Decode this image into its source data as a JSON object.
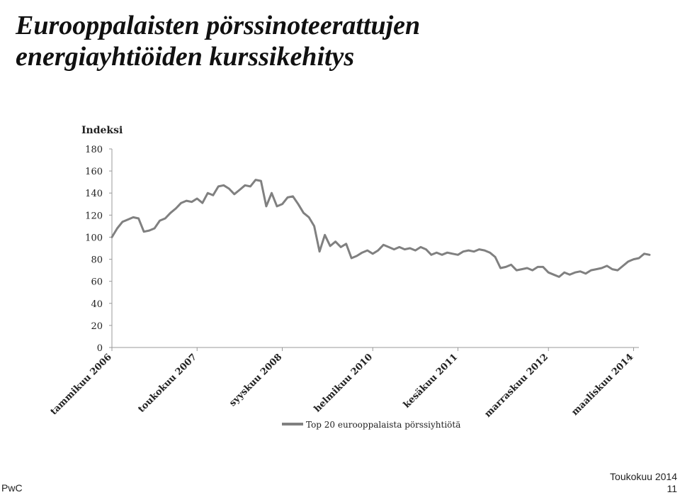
{
  "slide": {
    "title_line1": "Eurooppalaisten pörssinoteerattujen",
    "title_line2": "energiayhtiöiden kurssikehitys",
    "footer_left": "PwC",
    "footer_date": "Toukokuu 2014",
    "footer_page": "11"
  },
  "chart_data": {
    "type": "line",
    "title": "",
    "ylabel": "Indeksi",
    "ylim": [
      0,
      180
    ],
    "yticks": [
      0,
      20,
      40,
      60,
      80,
      100,
      120,
      140,
      160,
      180
    ],
    "xlim": [
      "2006-01",
      "2014-04"
    ],
    "x_tick_labels": [
      {
        "date": "2006-01",
        "label": "tammikuu 2006"
      },
      {
        "date": "2007-05",
        "label": "toukokuu 2007"
      },
      {
        "date": "2008-09",
        "label": "syyskuu 2008"
      },
      {
        "date": "2010-02",
        "label": "helmikuu 2010"
      },
      {
        "date": "2011-06",
        "label": "kesäkuu 2011"
      },
      {
        "date": "2012-11",
        "label": "marraskuu 2012"
      },
      {
        "date": "2014-03",
        "label": "maaliskuu 2014"
      }
    ],
    "legend_position": "bottom",
    "grid": false,
    "line_color": "#808080",
    "series": [
      {
        "name": "Top 20 eurooppalaista pörssiyhtiötä",
        "points": [
          [
            "2006-01",
            100
          ],
          [
            "2006-02",
            108
          ],
          [
            "2006-03",
            114
          ],
          [
            "2006-04",
            116
          ],
          [
            "2006-05",
            118
          ],
          [
            "2006-06",
            117
          ],
          [
            "2006-07",
            105
          ],
          [
            "2006-08",
            106
          ],
          [
            "2006-09",
            108
          ],
          [
            "2006-10",
            115
          ],
          [
            "2006-11",
            117
          ],
          [
            "2006-12",
            122
          ],
          [
            "2007-01",
            126
          ],
          [
            "2007-02",
            131
          ],
          [
            "2007-03",
            133
          ],
          [
            "2007-04",
            132
          ],
          [
            "2007-05",
            135
          ],
          [
            "2007-06",
            131
          ],
          [
            "2007-07",
            140
          ],
          [
            "2007-08",
            138
          ],
          [
            "2007-09",
            146
          ],
          [
            "2007-10",
            147
          ],
          [
            "2007-11",
            144
          ],
          [
            "2007-12",
            139
          ],
          [
            "2008-01",
            143
          ],
          [
            "2008-02",
            147
          ],
          [
            "2008-03",
            146
          ],
          [
            "2008-04",
            152
          ],
          [
            "2008-05",
            151
          ],
          [
            "2008-06",
            128
          ],
          [
            "2008-07",
            140
          ],
          [
            "2008-08",
            128
          ],
          [
            "2008-09",
            130
          ],
          [
            "2008-10",
            136
          ],
          [
            "2008-11",
            137
          ],
          [
            "2008-12",
            130
          ],
          [
            "2009-01",
            122
          ],
          [
            "2009-02",
            118
          ],
          [
            "2009-03",
            110
          ],
          [
            "2009-04",
            87
          ],
          [
            "2009-05",
            102
          ],
          [
            "2009-06",
            92
          ],
          [
            "2009-07",
            96
          ],
          [
            "2009-08",
            91
          ],
          [
            "2009-09",
            94
          ],
          [
            "2009-10",
            81
          ],
          [
            "2009-11",
            83
          ],
          [
            "2009-12",
            86
          ],
          [
            "2010-01",
            88
          ],
          [
            "2010-02",
            85
          ],
          [
            "2010-03",
            88
          ],
          [
            "2010-04",
            93
          ],
          [
            "2010-05",
            91
          ],
          [
            "2010-06",
            89
          ],
          [
            "2010-07",
            91
          ],
          [
            "2010-08",
            89
          ],
          [
            "2010-09",
            90
          ],
          [
            "2010-10",
            88
          ],
          [
            "2010-11",
            91
          ],
          [
            "2010-12",
            89
          ],
          [
            "2011-01",
            84
          ],
          [
            "2011-02",
            86
          ],
          [
            "2011-03",
            84
          ],
          [
            "2011-04",
            86
          ],
          [
            "2011-05",
            85
          ],
          [
            "2011-06",
            84
          ],
          [
            "2011-07",
            87
          ],
          [
            "2011-08",
            88
          ],
          [
            "2011-09",
            87
          ],
          [
            "2011-10",
            89
          ],
          [
            "2011-11",
            88
          ],
          [
            "2011-12",
            86
          ],
          [
            "2012-01",
            82
          ],
          [
            "2012-02",
            72
          ],
          [
            "2012-03",
            73
          ],
          [
            "2012-04",
            75
          ],
          [
            "2012-05",
            70
          ],
          [
            "2012-06",
            71
          ],
          [
            "2012-07",
            72
          ],
          [
            "2012-08",
            70
          ],
          [
            "2012-09",
            73
          ],
          [
            "2012-10",
            73
          ],
          [
            "2012-11",
            68
          ],
          [
            "2012-12",
            66
          ],
          [
            "2013-01",
            64
          ],
          [
            "2013-02",
            68
          ],
          [
            "2013-03",
            66
          ],
          [
            "2013-04",
            68
          ],
          [
            "2013-05",
            69
          ],
          [
            "2013-06",
            67
          ],
          [
            "2013-07",
            70
          ],
          [
            "2013-08",
            71
          ],
          [
            "2013-09",
            72
          ],
          [
            "2013-10",
            74
          ],
          [
            "2013-11",
            71
          ],
          [
            "2013-12",
            70
          ],
          [
            "2014-01",
            74
          ],
          [
            "2014-02",
            78
          ],
          [
            "2014-03",
            80
          ],
          [
            "2014-04",
            81
          ],
          [
            "2014-05",
            85
          ],
          [
            "2014-06",
            84
          ]
        ]
      }
    ]
  }
}
